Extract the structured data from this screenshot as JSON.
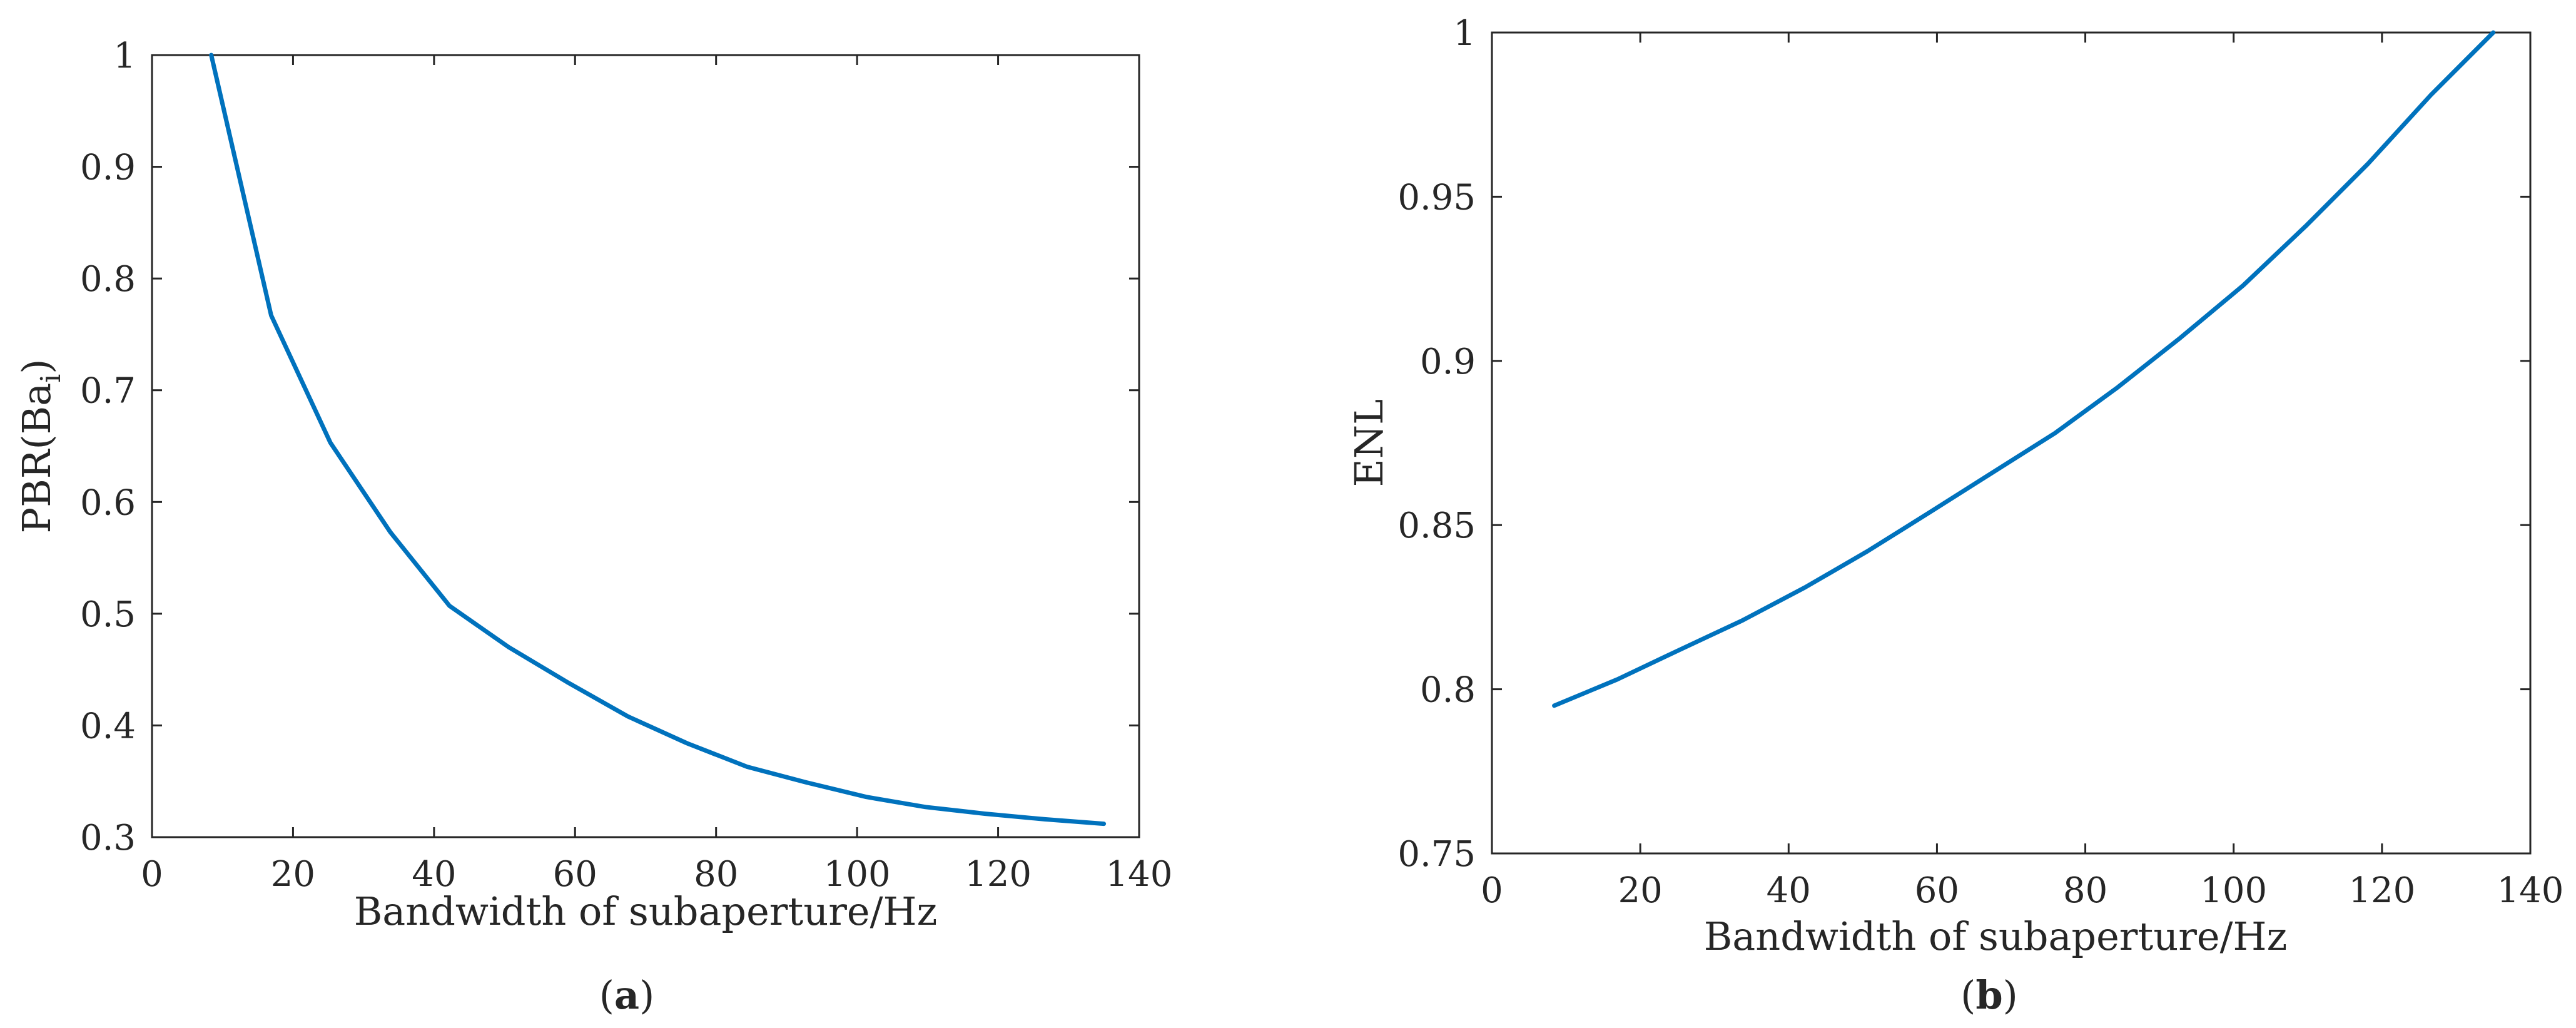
{
  "colors": {
    "series": "#0072BD",
    "axis": "#262626"
  },
  "chart_data": [
    {
      "type": "line",
      "panel_label": "a",
      "xlabel": "Bandwidth of subaperture/Hz",
      "ylabel_main": "PBR(Ba",
      "ylabel_sub": "i",
      "ylabel_close": ")",
      "xlim": [
        0,
        140
      ],
      "ylim": [
        0.3,
        1
      ],
      "xticks": [
        0,
        20,
        40,
        60,
        80,
        100,
        120,
        140
      ],
      "xtick_labels": [
        "0",
        "20",
        "40",
        "60",
        "80",
        "100",
        "120",
        "140"
      ],
      "yticks": [
        0.3,
        0.4,
        0.5,
        0.6,
        0.7,
        0.8,
        0.9,
        1
      ],
      "ytick_labels": [
        "0.3",
        "0.4",
        "0.5",
        "0.6",
        "0.7",
        "0.8",
        "0.9",
        "1"
      ],
      "grid": false,
      "series": [
        {
          "x": [
            8.4,
            16.9,
            25.3,
            33.8,
            42.2,
            50.6,
            59.1,
            67.5,
            75.9,
            84.4,
            92.8,
            101.3,
            109.7,
            118.1,
            126.6,
            135
          ],
          "y": [
            1.0,
            0.767,
            0.653,
            0.573,
            0.507,
            0.47,
            0.438,
            0.408,
            0.384,
            0.363,
            0.349,
            0.336,
            0.327,
            0.321,
            0.316,
            0.312
          ]
        }
      ]
    },
    {
      "type": "line",
      "panel_label": "b",
      "xlabel": "Bandwidth of subaperture/Hz",
      "ylabel_main": "ENL",
      "ylabel_sub": "",
      "ylabel_close": "",
      "xlim": [
        0,
        140
      ],
      "ylim": [
        0.75,
        1
      ],
      "xticks": [
        0,
        20,
        40,
        60,
        80,
        100,
        120,
        140
      ],
      "xtick_labels": [
        "0",
        "20",
        "40",
        "60",
        "80",
        "100",
        "120",
        "140"
      ],
      "yticks": [
        0.75,
        0.8,
        0.85,
        0.9,
        0.95,
        1
      ],
      "ytick_labels": [
        "0.75",
        "0.8",
        "0.85",
        "0.9",
        "0.95",
        "1"
      ],
      "grid": false,
      "series": [
        {
          "x": [
            8.4,
            16.9,
            25.3,
            33.8,
            42.2,
            50.6,
            59.1,
            67.5,
            75.9,
            84.4,
            92.8,
            101.3,
            109.7,
            118.1,
            126.6,
            135
          ],
          "y": [
            0.795,
            0.803,
            0.812,
            0.821,
            0.831,
            0.842,
            0.854,
            0.866,
            0.878,
            0.892,
            0.907,
            0.923,
            0.941,
            0.96,
            0.981,
            1.0
          ]
        }
      ]
    }
  ]
}
